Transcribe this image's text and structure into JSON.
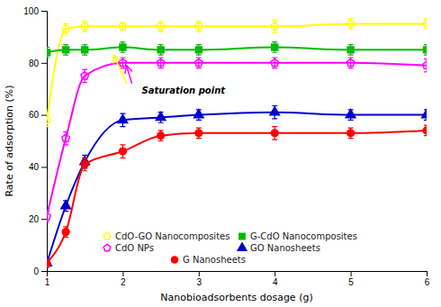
{
  "chart_data": {
    "type": "line",
    "xlabel": "Nanobioadsorbents dosage (g)",
    "ylabel": "Rate of adsorption (%)",
    "xlim": [
      1,
      6
    ],
    "ylim": [
      0,
      100
    ],
    "xticks": [
      1,
      2,
      3,
      4,
      5,
      6
    ],
    "yticks": [
      0,
      20,
      40,
      60,
      80,
      100
    ],
    "series": [
      {
        "name": "CdO-GO Nanocomposites",
        "color": "#FFFF00",
        "marker": "circle-open",
        "x": [
          1.0,
          1.25,
          1.5,
          2.0,
          2.5,
          3.0,
          4.0,
          5.0,
          6.0
        ],
        "values": [
          58,
          93,
          94,
          94,
          94,
          94,
          94,
          95,
          95
        ],
        "errors": [
          2.5,
          2.0,
          2.0,
          1.5,
          2.0,
          2.0,
          2.5,
          2.0,
          2.0
        ]
      },
      {
        "name": "G-CdO Nanocomposites",
        "color": "#00BB00",
        "marker": "square",
        "x": [
          1.0,
          1.25,
          1.5,
          2.0,
          2.5,
          3.0,
          4.0,
          5.0,
          6.0
        ],
        "values": [
          84,
          85,
          85,
          86,
          85,
          85,
          86,
          85,
          85
        ],
        "errors": [
          2.0,
          2.0,
          2.0,
          2.0,
          2.0,
          2.0,
          2.0,
          2.0,
          2.0
        ]
      },
      {
        "name": "CdO NPs",
        "color": "#FF00FF",
        "marker": "pentagon-open",
        "x": [
          1.0,
          1.25,
          1.5,
          2.0,
          2.5,
          3.0,
          4.0,
          5.0,
          6.0
        ],
        "values": [
          21,
          51,
          75,
          80,
          80,
          80,
          80,
          80,
          79
        ],
        "errors": [
          2.0,
          2.5,
          2.5,
          2.0,
          2.0,
          2.0,
          2.0,
          2.0,
          2.5
        ]
      },
      {
        "name": "GO Nanosheets",
        "color": "#0000CC",
        "marker": "triangle-up",
        "x": [
          1.0,
          1.25,
          1.5,
          2.0,
          2.5,
          3.0,
          4.0,
          5.0,
          6.0
        ],
        "values": [
          3,
          25,
          42,
          58,
          59,
          60,
          61,
          60,
          60
        ],
        "errors": [
          1.5,
          2.0,
          2.5,
          2.5,
          2.0,
          2.0,
          2.5,
          2.0,
          2.0
        ]
      },
      {
        "name": "G Nanosheets",
        "color": "#FF0000",
        "marker": "circle",
        "x": [
          1.0,
          1.25,
          1.5,
          2.0,
          2.5,
          3.0,
          4.0,
          5.0,
          6.0
        ],
        "values": [
          3,
          15,
          41,
          46,
          52,
          53,
          53,
          53,
          54
        ],
        "errors": [
          1.5,
          2.0,
          2.5,
          2.5,
          2.0,
          2.0,
          2.5,
          2.0,
          2.0
        ]
      }
    ],
    "annotations": [
      {
        "text": "Saturation point",
        "x": 2.25,
        "y": 68,
        "arrows": [
          {
            "from": [
              2.05,
              72
            ],
            "to": [
              1.88,
              83
            ],
            "color": "#FFFF00"
          },
          {
            "from": [
              2.12,
              72
            ],
            "to": [
              2.05,
              79
            ],
            "color": "#FF00FF"
          }
        ]
      }
    ],
    "legend": "lower center"
  }
}
